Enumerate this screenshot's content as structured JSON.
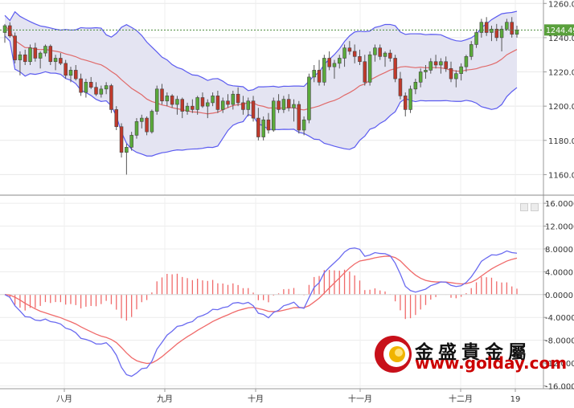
{
  "chart_data": [
    {
      "type": "candlestick",
      "title": "",
      "ylim": [
        1148,
        1262
      ],
      "y_ticks": [
        "1260.0",
        "1240.0",
        "1220.0",
        "1200.0",
        "1180.0",
        "1160.0"
      ],
      "last_value_label": "1244.49",
      "x_tick_labels": [
        "八月",
        "九月",
        "十月",
        "十一月",
        "十二月",
        "19"
      ],
      "colors": {
        "up": "#5aaa3a",
        "down": "#c0392b",
        "band_fill": "#e4e4f2",
        "band_line": "#5b5bf0",
        "mid_line": "#e06a6a",
        "last_line": "#4a8a3a"
      },
      "ohlc": [
        [
          1243,
          1248,
          1237,
          1247
        ],
        [
          1247,
          1249,
          1240,
          1241
        ],
        [
          1241,
          1243,
          1225,
          1227
        ],
        [
          1227,
          1232,
          1218,
          1230
        ],
        [
          1230,
          1233,
          1224,
          1226
        ],
        [
          1226,
          1236,
          1224,
          1234
        ],
        [
          1234,
          1237,
          1226,
          1228
        ],
        [
          1228,
          1232,
          1222,
          1231
        ],
        [
          1231,
          1236,
          1229,
          1235
        ],
        [
          1235,
          1236,
          1224,
          1226
        ],
        [
          1226,
          1230,
          1221,
          1228
        ],
        [
          1228,
          1231,
          1224,
          1225
        ],
        [
          1225,
          1227,
          1216,
          1218
        ],
        [
          1218,
          1223,
          1214,
          1221
        ],
        [
          1221,
          1224,
          1215,
          1216
        ],
        [
          1216,
          1219,
          1206,
          1208
        ],
        [
          1208,
          1216,
          1205,
          1214
        ],
        [
          1214,
          1217,
          1210,
          1211
        ],
        [
          1211,
          1214,
          1206,
          1207
        ],
        [
          1207,
          1212,
          1205,
          1210
        ],
        [
          1210,
          1214,
          1207,
          1212
        ],
        [
          1212,
          1213,
          1196,
          1198
        ],
        [
          1198,
          1200,
          1186,
          1188
        ],
        [
          1188,
          1190,
          1170,
          1173
        ],
        [
          1173,
          1178,
          1160,
          1176
        ],
        [
          1176,
          1185,
          1174,
          1183
        ],
        [
          1183,
          1193,
          1181,
          1191
        ],
        [
          1191,
          1195,
          1187,
          1193
        ],
        [
          1193,
          1194,
          1183,
          1185
        ],
        [
          1185,
          1198,
          1184,
          1197
        ],
        [
          1197,
          1212,
          1195,
          1210
        ],
        [
          1210,
          1213,
          1201,
          1203
        ],
        [
          1203,
          1208,
          1200,
          1206
        ],
        [
          1206,
          1207,
          1199,
          1201
        ],
        [
          1201,
          1206,
          1195,
          1204
        ],
        [
          1204,
          1205,
          1193,
          1197
        ],
        [
          1197,
          1202,
          1195,
          1200
        ],
        [
          1200,
          1204,
          1196,
          1198
        ],
        [
          1198,
          1206,
          1195,
          1205
        ],
        [
          1205,
          1208,
          1199,
          1200
        ],
        [
          1200,
          1204,
          1193,
          1202
        ],
        [
          1202,
          1208,
          1200,
          1206
        ],
        [
          1206,
          1209,
          1196,
          1198
        ],
        [
          1198,
          1205,
          1196,
          1203
        ],
        [
          1203,
          1207,
          1199,
          1201
        ],
        [
          1201,
          1209,
          1198,
          1207
        ],
        [
          1207,
          1211,
          1200,
          1202
        ],
        [
          1202,
          1206,
          1195,
          1198
        ],
        [
          1198,
          1205,
          1194,
          1203
        ],
        [
          1203,
          1206,
          1191,
          1193
        ],
        [
          1193,
          1199,
          1180,
          1182
        ],
        [
          1182,
          1194,
          1180,
          1192
        ],
        [
          1192,
          1196,
          1184,
          1186
        ],
        [
          1186,
          1205,
          1185,
          1203
        ],
        [
          1203,
          1207,
          1196,
          1198
        ],
        [
          1198,
          1206,
          1196,
          1204
        ],
        [
          1204,
          1207,
          1197,
          1199
        ],
        [
          1199,
          1204,
          1191,
          1201
        ],
        [
          1201,
          1203,
          1184,
          1186
        ],
        [
          1186,
          1194,
          1183,
          1192
        ],
        [
          1192,
          1219,
          1190,
          1217
        ],
        [
          1217,
          1224,
          1214,
          1221
        ],
        [
          1221,
          1227,
          1212,
          1214
        ],
        [
          1214,
          1230,
          1212,
          1228
        ],
        [
          1228,
          1232,
          1221,
          1223
        ],
        [
          1223,
          1227,
          1216,
          1225
        ],
        [
          1225,
          1230,
          1222,
          1228
        ],
        [
          1228,
          1236,
          1223,
          1234
        ],
        [
          1234,
          1238,
          1230,
          1232
        ],
        [
          1232,
          1236,
          1225,
          1229
        ],
        [
          1229,
          1233,
          1224,
          1226
        ],
        [
          1226,
          1230,
          1212,
          1214
        ],
        [
          1214,
          1232,
          1212,
          1230
        ],
        [
          1230,
          1236,
          1226,
          1234
        ],
        [
          1234,
          1236,
          1227,
          1229
        ],
        [
          1229,
          1232,
          1223,
          1231
        ],
        [
          1231,
          1233,
          1226,
          1228
        ],
        [
          1228,
          1230,
          1214,
          1216
        ],
        [
          1216,
          1220,
          1204,
          1206
        ],
        [
          1206,
          1208,
          1194,
          1198
        ],
        [
          1198,
          1212,
          1196,
          1210
        ],
        [
          1210,
          1216,
          1207,
          1214
        ],
        [
          1214,
          1222,
          1211,
          1220
        ],
        [
          1220,
          1224,
          1216,
          1221
        ],
        [
          1221,
          1228,
          1219,
          1226
        ],
        [
          1226,
          1230,
          1222,
          1224
        ],
        [
          1224,
          1228,
          1219,
          1226
        ],
        [
          1226,
          1229,
          1220,
          1222
        ],
        [
          1222,
          1226,
          1214,
          1216
        ],
        [
          1216,
          1221,
          1211,
          1219
        ],
        [
          1219,
          1225,
          1215,
          1223
        ],
        [
          1223,
          1230,
          1220,
          1229
        ],
        [
          1229,
          1238,
          1227,
          1236
        ],
        [
          1236,
          1245,
          1234,
          1243
        ],
        [
          1243,
          1251,
          1240,
          1249
        ],
        [
          1249,
          1252,
          1241,
          1243
        ],
        [
          1243,
          1247,
          1238,
          1245
        ],
        [
          1245,
          1248,
          1238,
          1240
        ],
        [
          1240,
          1247,
          1232,
          1245
        ],
        [
          1245,
          1251,
          1244,
          1249
        ],
        [
          1249,
          1252,
          1240,
          1242
        ],
        [
          1242,
          1247,
          1240,
          1244.49
        ]
      ]
    },
    {
      "type": "line",
      "title": "",
      "ylim": [
        -16.5,
        17
      ],
      "y_ticks": [
        "16.0000",
        "12.0000",
        "8.0000",
        "4.0000",
        "0.0000",
        "-4.0000",
        "-8.0000",
        "-12.0000",
        "-16.0000"
      ],
      "series_colors": {
        "fast": "#6a6af0",
        "slow": "#f06a6a",
        "histogram": "#f06a6a"
      }
    }
  ],
  "logo": {
    "name": "金盛貴金屬",
    "url": "www.golday.com"
  }
}
